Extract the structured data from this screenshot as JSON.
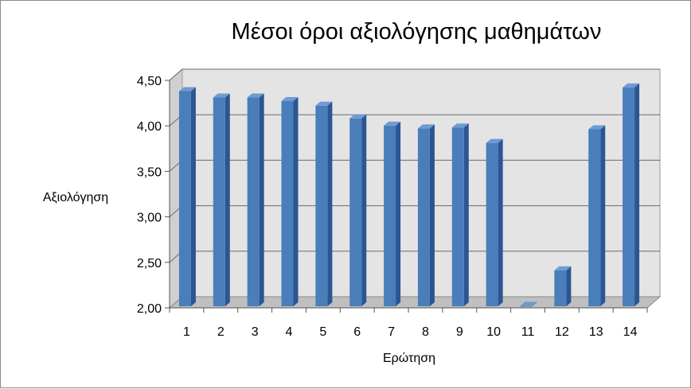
{
  "chart_data": {
    "type": "bar",
    "title": "Μέσοι όροι αξιολόγησης μαθημάτων",
    "xlabel": "Ερώτηση",
    "ylabel": "Αξιολόγηση",
    "categories": [
      "1",
      "2",
      "3",
      "4",
      "5",
      "6",
      "7",
      "8",
      "9",
      "10",
      "11",
      "12",
      "13",
      "14"
    ],
    "values": [
      4.4,
      4.33,
      4.33,
      4.29,
      4.24,
      4.1,
      4.02,
      3.99,
      4.0,
      3.83,
      2.04,
      2.43,
      3.98,
      4.44
    ],
    "ylim": [
      2.0,
      4.5
    ],
    "yticks": [
      "2,00",
      "2,50",
      "3,00",
      "3,50",
      "4,00",
      "4,50"
    ],
    "grid": true,
    "legend": "none",
    "colors": {
      "bar_front": "#4a7ebb",
      "bar_side": "#2c5592",
      "bar_top": "#6f9bd3",
      "wall": "#e4e4e4",
      "floor": "#bfbfbf",
      "grid": "#6b6b6b"
    }
  }
}
